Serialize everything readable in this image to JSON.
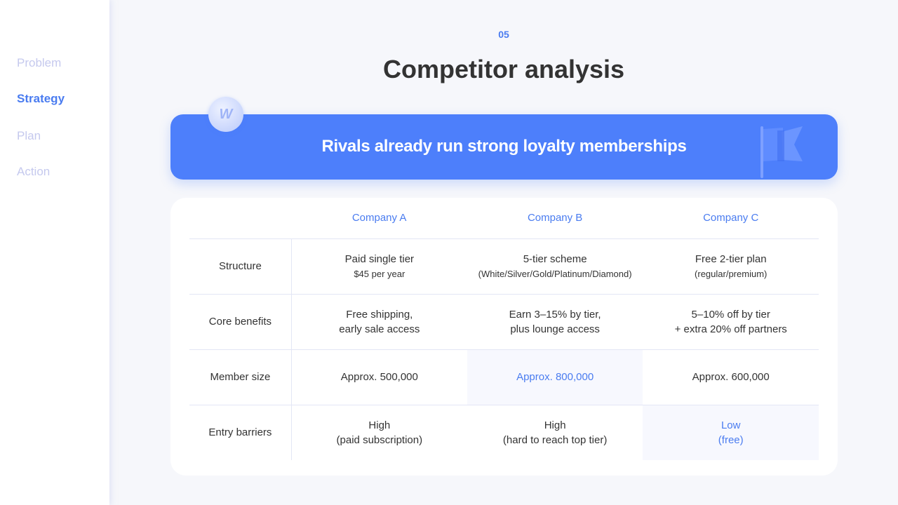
{
  "sidebar": {
    "items": [
      {
        "label": "Problem"
      },
      {
        "label": "Strategy",
        "active": true
      },
      {
        "label": "Plan"
      },
      {
        "label": "Action"
      }
    ]
  },
  "slide": {
    "number": "05",
    "title": "Competitor analysis"
  },
  "banner": {
    "text": "Rivals already run strong loyalty memberships",
    "icons": [
      "coin-w-icon",
      "flag-icon"
    ]
  },
  "colors": {
    "accent": "#4a7cf0",
    "banner": "#4d7ffb"
  },
  "table": {
    "headers": [
      "",
      "Company A",
      "Company B",
      "Company C"
    ],
    "rows": [
      {
        "label": "Structure",
        "cells": [
          [
            "Paid single tier",
            "$45 per year"
          ],
          [
            "5-tier scheme",
            "(White/Silver/Gold/Platinum/Diamond)"
          ],
          [
            "Free 2-tier plan",
            "(regular/premium)"
          ]
        ]
      },
      {
        "label": "Core benefits",
        "cells": [
          [
            "Free shipping,",
            "early sale access"
          ],
          [
            "Earn 3–15% by tier,",
            "plus lounge access"
          ],
          [
            "5–10% off by tier",
            "+ extra 20% off partners"
          ]
        ]
      },
      {
        "label": "Member size",
        "cells": [
          [
            "Approx. 500,000"
          ],
          [
            "Approx. 800,000"
          ],
          [
            "Approx. 600,000"
          ]
        ],
        "highlight": 1
      },
      {
        "label": "Entry barriers",
        "cells": [
          [
            "High",
            "(paid subscription)"
          ],
          [
            "High",
            "(hard to reach top tier)"
          ],
          [
            "Low",
            "(free)"
          ]
        ],
        "highlight": 2
      }
    ]
  }
}
